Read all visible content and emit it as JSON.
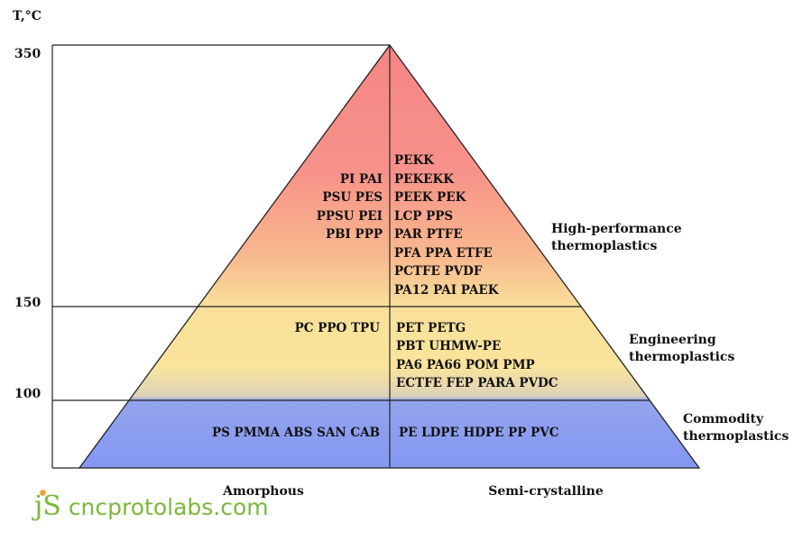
{
  "axis": {
    "unit_label": "T,°C",
    "ticks": [
      "350",
      "150",
      "100"
    ]
  },
  "amorphous": {
    "high": [
      "PI   PAI",
      "PSU  PES",
      "PPSU  PEI",
      "PBI  PPP"
    ],
    "engineering": [
      "PC   PPO   TPU"
    ],
    "commodity": [
      "PS   PMMA   ABS   SAN   CAB"
    ]
  },
  "semicrystalline": {
    "high": [
      "PEKK",
      "PEKEKK",
      "PEEK  PEK",
      "LCP  PPS",
      "PAR  PTFE",
      "PFA  PPA  ETFE",
      "PCTFE  PVDF",
      "PA12  PAI  PAEK"
    ],
    "engineering": [
      "PET     PETG",
      "PBT     UHMW-PE",
      "PA6    PA66    POM    PMP",
      "ECTFE    FEP    PARA    PVDC"
    ],
    "commodity": [
      "PE    LDPE    HDPE    PP    PVC"
    ]
  },
  "tiers": {
    "high": [
      "High-performance",
      "thermoplastics"
    ],
    "engineering": [
      "Engineering",
      "thermoplastics"
    ],
    "commodity": [
      "Commodity",
      "thermoplastics"
    ]
  },
  "columns": {
    "left": "Amorphous",
    "right": "Semi-crystalline"
  },
  "logo": {
    "mark": "jS",
    "text": "cncprotolabs.com"
  },
  "colors": {
    "top": "#f58585",
    "mid": "#f9e49b",
    "bottom": "#8497f2",
    "logo": "#7ab83a"
  }
}
